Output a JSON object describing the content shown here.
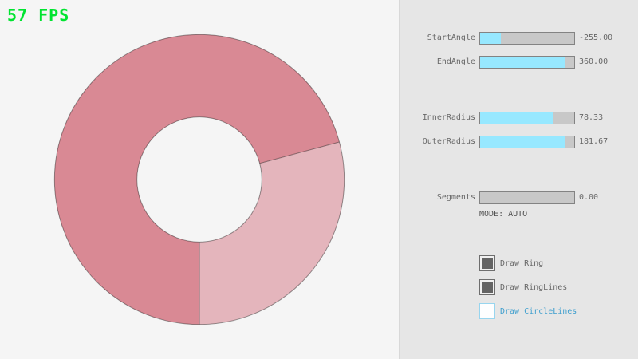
{
  "fps": "57 FPS",
  "colors": {
    "ring_dark": "#d98994",
    "ring_light": "#e4b5bc",
    "ring_outline": "#00000066",
    "slider_fill": "#97e8ff",
    "checkbox_checked_fill": "#646464",
    "checkbox_active_border": "#97d5ef",
    "checkbox_active_text": "#3f9fce",
    "fps_green": "#00e430",
    "panel_bg": "#e6e6e6"
  },
  "sliders": [
    {
      "label": "StartAngle",
      "value": "-255.00",
      "fill_pct": 21.7
    },
    {
      "label": "EndAngle",
      "value": "360.00",
      "fill_pct": 90.0
    },
    {
      "label": "InnerRadius",
      "value": "78.33",
      "fill_pct": 78.3
    },
    {
      "label": "OuterRadius",
      "value": "181.67",
      "fill_pct": 90.8
    },
    {
      "label": "Segments",
      "value": "0.00",
      "fill_pct": 0
    }
  ],
  "mode_text": "MODE: AUTO",
  "checkboxes": [
    {
      "label": "Draw Ring",
      "checked": true
    },
    {
      "label": "Draw RingLines",
      "checked": true
    },
    {
      "label": "Draw CircleLines",
      "checked": false
    }
  ]
}
